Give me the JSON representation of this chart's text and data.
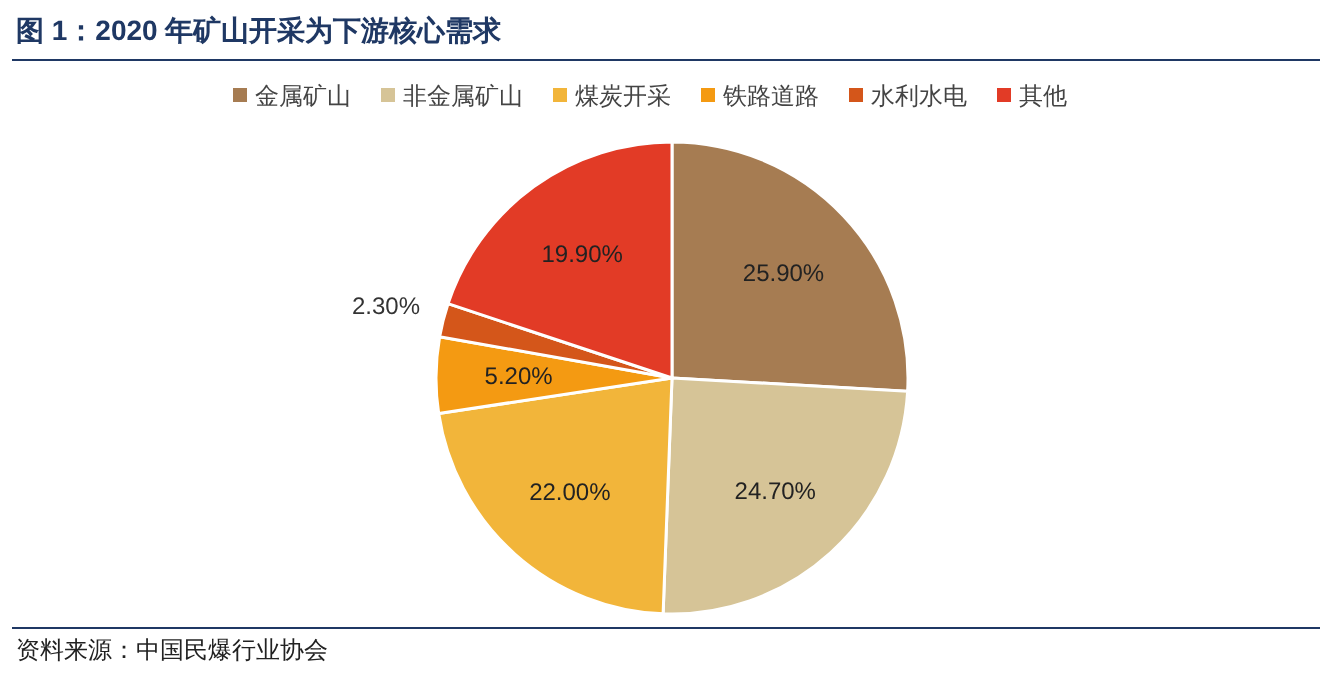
{
  "chart_data": {
    "type": "pie",
    "title": "图 1：2020 年矿山开采为下游核心需求",
    "categories": [
      "金属矿山",
      "非金属矿山",
      "煤炭开采",
      "铁路道路",
      "水利水电",
      "其他"
    ],
    "values": [
      25.9,
      24.7,
      22.0,
      5.2,
      2.3,
      19.9
    ],
    "colors": [
      "#a67c52",
      "#d6c497",
      "#f2b53a",
      "#f49a12",
      "#d4561a",
      "#e23b26"
    ],
    "value_labels": [
      "25.90%",
      "24.70%",
      "22.00%",
      "5.20%",
      "2.30%",
      "19.90%"
    ],
    "legend": "top",
    "annotations": [
      "资料来源：中国民爆行业协会"
    ]
  }
}
